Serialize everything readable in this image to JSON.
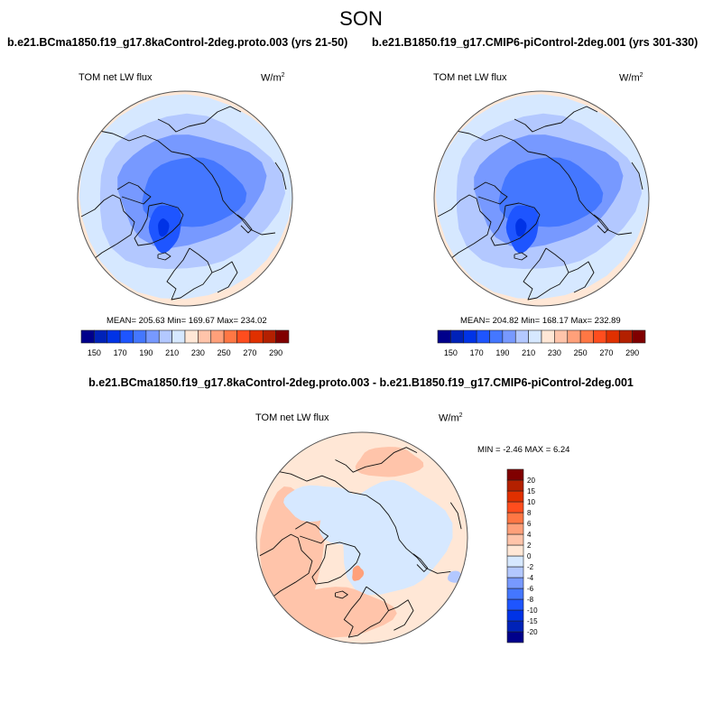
{
  "header": {
    "title": "SON"
  },
  "panels": {
    "left": {
      "case_title": "b.e21.BCma1850.f19_g17.8kaControl-2deg.proto.003 (yrs 21-50)",
      "variable": "TOM net LW flux",
      "units_base": "W/m",
      "units_exp": "2",
      "stats": "MEAN= 205.63  Min= 169.67  Max= 234.02"
    },
    "right": {
      "case_title": "b.e21.B1850.f19_g17.CMIP6-piControl-2deg.001 (yrs 301-330)",
      "variable": "TOM net LW flux",
      "units_base": "W/m",
      "units_exp": "2",
      "stats": "MEAN= 204.82  Min= 168.17  Max= 232.89"
    },
    "diff": {
      "case_title": "b.e21.BCma1850.f19_g17.8kaControl-2deg.proto.003 - b.e21.B1850.f19_g17.CMIP6-piControl-2deg.001",
      "variable": "TOM net LW flux",
      "units_base": "W/m",
      "units_exp": "2",
      "stats": "MIN =  -2.46 MAX =   6.24"
    }
  },
  "chart_data": [
    {
      "type": "heatmap",
      "projection": "north-polar-stereographic",
      "title": "b.e21.BCma1850.f19_g17.8kaControl-2deg.proto.003 (yrs 21-50)",
      "variable": "TOM net LW flux",
      "units": "W/m^2",
      "season": "SON",
      "mean": 205.63,
      "min": 169.67,
      "max": 234.02,
      "colorbar": {
        "orientation": "horizontal",
        "levels": [
          150,
          160,
          170,
          180,
          190,
          200,
          210,
          220,
          230,
          240,
          250,
          260,
          270,
          280,
          290
        ],
        "tick_labels": [
          "150",
          "170",
          "190",
          "210",
          "230",
          "250",
          "270",
          "290"
        ],
        "colors": [
          "#00008b",
          "#0022b8",
          "#0033e6",
          "#1e55ff",
          "#4477ff",
          "#7799ff",
          "#b3c8ff",
          "#d6e8ff",
          "#ffe7d6",
          "#ffc4aa",
          "#ffa07a",
          "#ff7744",
          "#ff4d1e",
          "#e03000",
          "#b32000",
          "#800000"
        ]
      }
    },
    {
      "type": "heatmap",
      "projection": "north-polar-stereographic",
      "title": "b.e21.B1850.f19_g17.CMIP6-piControl-2deg.001 (yrs 301-330)",
      "variable": "TOM net LW flux",
      "units": "W/m^2",
      "season": "SON",
      "mean": 204.82,
      "min": 168.17,
      "max": 232.89,
      "colorbar": {
        "orientation": "horizontal",
        "levels": [
          150,
          160,
          170,
          180,
          190,
          200,
          210,
          220,
          230,
          240,
          250,
          260,
          270,
          280,
          290
        ],
        "tick_labels": [
          "150",
          "170",
          "190",
          "210",
          "230",
          "250",
          "270",
          "290"
        ],
        "colors": [
          "#00008b",
          "#0022b8",
          "#0033e6",
          "#1e55ff",
          "#4477ff",
          "#7799ff",
          "#b3c8ff",
          "#d6e8ff",
          "#ffe7d6",
          "#ffc4aa",
          "#ffa07a",
          "#ff7744",
          "#ff4d1e",
          "#e03000",
          "#b32000",
          "#800000"
        ]
      }
    },
    {
      "type": "heatmap",
      "projection": "north-polar-stereographic",
      "title": "b.e21.BCma1850.f19_g17.8kaControl-2deg.proto.003 - b.e21.B1850.f19_g17.CMIP6-piControl-2deg.001",
      "variable": "TOM net LW flux",
      "units": "W/m^2",
      "min": -2.46,
      "max": 6.24,
      "colorbar": {
        "orientation": "vertical",
        "levels": [
          -20,
          -15,
          -10,
          -8,
          -6,
          -4,
          -2,
          0,
          2,
          4,
          6,
          8,
          10,
          15,
          20
        ],
        "tick_labels": [
          "-20",
          "-15",
          "-10",
          "-8",
          "-6",
          "-4",
          "-2",
          "0",
          "2",
          "4",
          "6",
          "8",
          "10",
          "15",
          "20"
        ],
        "colors": [
          "#00008b",
          "#0022b8",
          "#0033e6",
          "#1e55ff",
          "#4477ff",
          "#7799ff",
          "#b3c8ff",
          "#d6e8ff",
          "#ffe7d6",
          "#ffc4aa",
          "#ffa07a",
          "#ff7744",
          "#ff4d1e",
          "#e03000",
          "#b32000",
          "#800000"
        ]
      }
    }
  ]
}
